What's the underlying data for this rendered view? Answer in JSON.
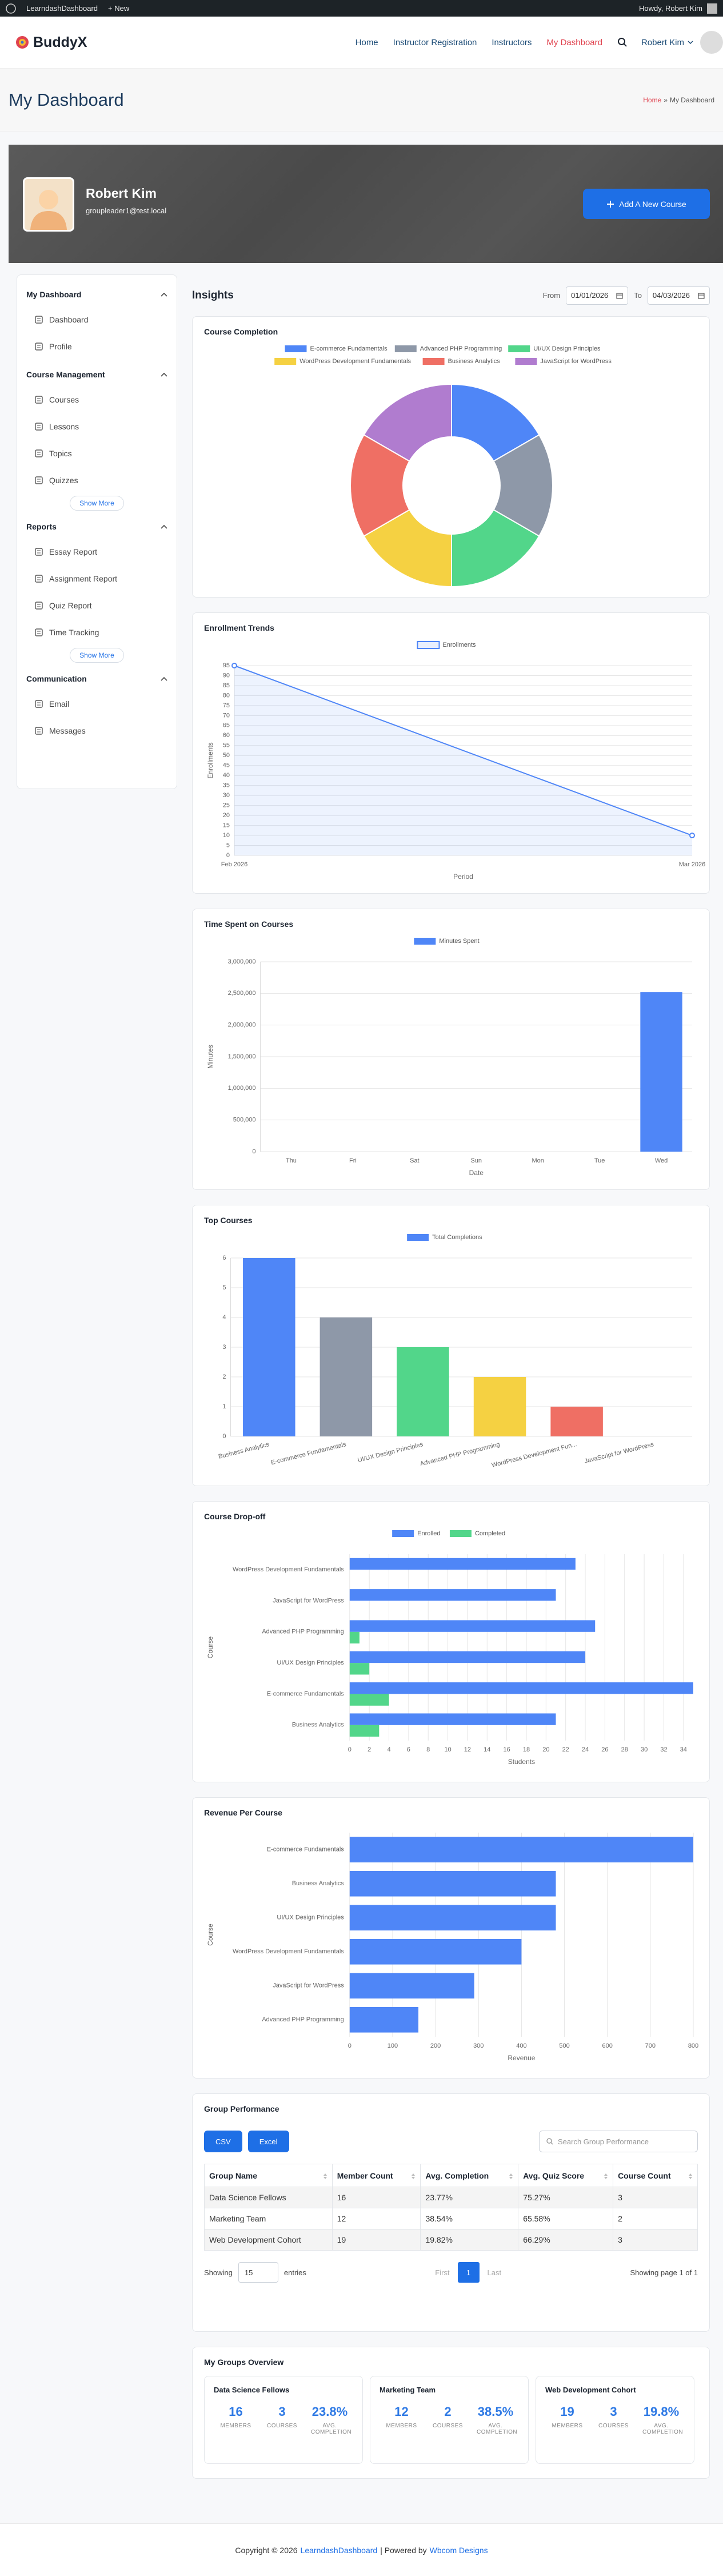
{
  "admin_bar": {
    "site": "LearndashDashboard",
    "new": "New",
    "greeting": "Howdy, Robert Kim"
  },
  "header": {
    "logo": "BuddyX",
    "nav": [
      "Home",
      "Instructor Registration",
      "Instructors",
      "My Dashboard"
    ],
    "user": "Robert Kim"
  },
  "page": {
    "title": "My Dashboard",
    "breadcrumb": [
      "Home",
      "»",
      "My Dashboard"
    ]
  },
  "profile": {
    "name": "Robert Kim",
    "email": "groupleader1@test.local",
    "button": "Add A New Course"
  },
  "sidebar": [
    {
      "title": "My Dashboard",
      "items": [
        "Dashboard",
        "Profile"
      ]
    },
    {
      "title": "Course Management",
      "items": [
        "Courses",
        "Lessons",
        "Topics",
        "Quizzes"
      ],
      "more": "Show More"
    },
    {
      "title": "Reports",
      "items": [
        "Essay Report",
        "Assignment Report",
        "Quiz Report",
        "Time Tracking"
      ],
      "more": "Show More"
    },
    {
      "title": "Communication",
      "items": [
        "Email",
        "Messages"
      ]
    }
  ],
  "insights": {
    "title": "Insights",
    "from_label": "From",
    "from": "01/01/2026",
    "to_label": "To",
    "to": "04/03/2026"
  },
  "chart_data": [
    {
      "type": "doughnut",
      "title": "Course Completion",
      "categories": [
        "E-commerce Fundamentals",
        "Advanced PHP Programming",
        "UI/UX Design Principles",
        "WordPress Development Fundamentals",
        "Business Analytics",
        "JavaScript for WordPress"
      ],
      "values": [
        1,
        1,
        1,
        1,
        1,
        1
      ],
      "colors": [
        "#4f86f7",
        "#8e98a8",
        "#52d68a",
        "#f5d142",
        "#ef6f64",
        "#b07ccf"
      ]
    },
    {
      "type": "line",
      "title": "Enrollment Trends",
      "categories": [
        "Feb 2026",
        "Mar 2026"
      ],
      "series": [
        {
          "name": "Enrollments",
          "color": "#4f86f7",
          "values": [
            95,
            10
          ]
        }
      ],
      "ylim": [
        0,
        95
      ],
      "yticks": [
        0,
        5,
        10,
        15,
        20,
        25,
        30,
        35,
        40,
        45,
        50,
        55,
        60,
        65,
        70,
        75,
        80,
        85,
        90,
        95
      ],
      "xlabel": "Period",
      "ylabel": "Enrollments",
      "grid": true
    },
    {
      "type": "bar",
      "title": "Time Spent on Courses",
      "categories": [
        "Thu",
        "Fri",
        "Sat",
        "Sun",
        "Mon",
        "Tue",
        "Wed"
      ],
      "series": [
        {
          "name": "Minutes Spent",
          "color": "#4f86f7",
          "values": [
            0,
            0,
            0,
            0,
            0,
            0,
            2520000
          ]
        }
      ],
      "ylim": [
        0,
        3000000
      ],
      "yticks": [
        0,
        {
          "value": 500000,
          "label": "500,000"
        },
        {
          "value": 1000000,
          "label": "1,000,000"
        },
        {
          "value": 1500000,
          "label": "1,500,000"
        },
        {
          "value": 2000000,
          "label": "2,000,000"
        },
        {
          "value": 2500000,
          "label": "2,500,000"
        },
        {
          "value": 3000000,
          "label": "3,000,000"
        }
      ],
      "xlabel": "Date",
      "ylabel": "Minutes",
      "grid": true
    },
    {
      "type": "bar",
      "title": "Top Courses",
      "categories": [
        "Business Analytics",
        "E-commerce Fundamentals",
        "UI/UX Design Principles",
        "Advanced PHP Programming",
        "WordPress Development Fun...",
        "JavaScript for WordPress"
      ],
      "series": [
        {
          "name": "Total Completions",
          "color": "#4f86f7",
          "values": [
            6,
            4,
            3,
            2,
            1,
            0
          ]
        }
      ],
      "colors": [
        "#4f86f7",
        "#8e98a8",
        "#52d68a",
        "#f5d142",
        "#ef6f64",
        "#b07ccf"
      ],
      "ylim": [
        0,
        6
      ],
      "yticks": [
        0,
        1,
        2,
        3,
        4,
        5,
        6
      ],
      "grid": true
    },
    {
      "type": "barh",
      "title": "Course Drop-off",
      "categories": [
        "WordPress Development Fundamentals",
        "JavaScript for WordPress",
        "Advanced PHP Programming",
        "UI/UX Design Principles",
        "E-commerce Fundamentals",
        "Business Analytics"
      ],
      "series": [
        {
          "name": "Enrolled",
          "color": "#4f86f7",
          "values": [
            23,
            21,
            25,
            24,
            35,
            21
          ]
        },
        {
          "name": "Completed",
          "color": "#52d68a",
          "values": [
            0,
            0,
            1,
            2,
            4,
            3
          ]
        }
      ],
      "xlim": [
        0,
        35
      ],
      "xticks": [
        0,
        2,
        4,
        6,
        8,
        10,
        12,
        14,
        16,
        18,
        20,
        22,
        24,
        26,
        28,
        30,
        32,
        34
      ],
      "xlabel": "Students",
      "ylabel": "Course",
      "grid": true
    },
    {
      "type": "barh",
      "title": "Revenue Per Course",
      "categories": [
        "E-commerce Fundamentals",
        "Business Analytics",
        "UI/UX Design Principles",
        "WordPress Development Fundamentals",
        "JavaScript for WordPress",
        "Advanced PHP Programming"
      ],
      "values": [
        800,
        480,
        480,
        400,
        290,
        160
      ],
      "color": "#4f86f7",
      "xlim": [
        0,
        800
      ],
      "xticks": [
        0,
        100,
        200,
        300,
        400,
        500,
        600,
        700,
        800
      ],
      "xlabel": "Revenue",
      "ylabel": "Course",
      "grid": true
    }
  ],
  "group_performance": {
    "title": "Group Performance",
    "buttons": [
      "CSV",
      "Excel"
    ],
    "search": "Search Group Performance",
    "columns": [
      "Group Name",
      "Member Count",
      "Avg. Completion",
      "Avg. Quiz Score",
      "Course Count"
    ],
    "rows": [
      [
        "Data Science Fellows",
        "16",
        "23.77%",
        "75.27%",
        "3"
      ],
      [
        "Marketing Team",
        "12",
        "38.54%",
        "65.58%",
        "2"
      ],
      [
        "Web Development Cohort",
        "19",
        "19.82%",
        "66.29%",
        "3"
      ]
    ],
    "showing": "Showing",
    "entries_value": "15",
    "entries": "entries",
    "pagination": [
      "First",
      "1",
      "Last"
    ],
    "page_info": "Showing page 1 of 1"
  },
  "groups_overview": {
    "title": "My Groups Overview",
    "groups": [
      {
        "name": "Data Science Fellows",
        "stats": [
          {
            "value": "16",
            "label": "MEMBERS"
          },
          {
            "value": "3",
            "label": "COURSES"
          },
          {
            "value": "23.8%",
            "label": "AVG. COMPLETION"
          }
        ]
      },
      {
        "name": "Marketing Team",
        "stats": [
          {
            "value": "12",
            "label": "MEMBERS"
          },
          {
            "value": "2",
            "label": "COURSES"
          },
          {
            "value": "38.5%",
            "label": "AVG. COMPLETION"
          }
        ]
      },
      {
        "name": "Web Development Cohort",
        "stats": [
          {
            "value": "19",
            "label": "MEMBERS"
          },
          {
            "value": "3",
            "label": "COURSES"
          },
          {
            "value": "19.8%",
            "label": "AVG. COMPLETION"
          }
        ]
      }
    ]
  },
  "footer": [
    "Copyright © 2026",
    "LearndashDashboard",
    "| Powered by",
    "Wbcom Designs"
  ]
}
